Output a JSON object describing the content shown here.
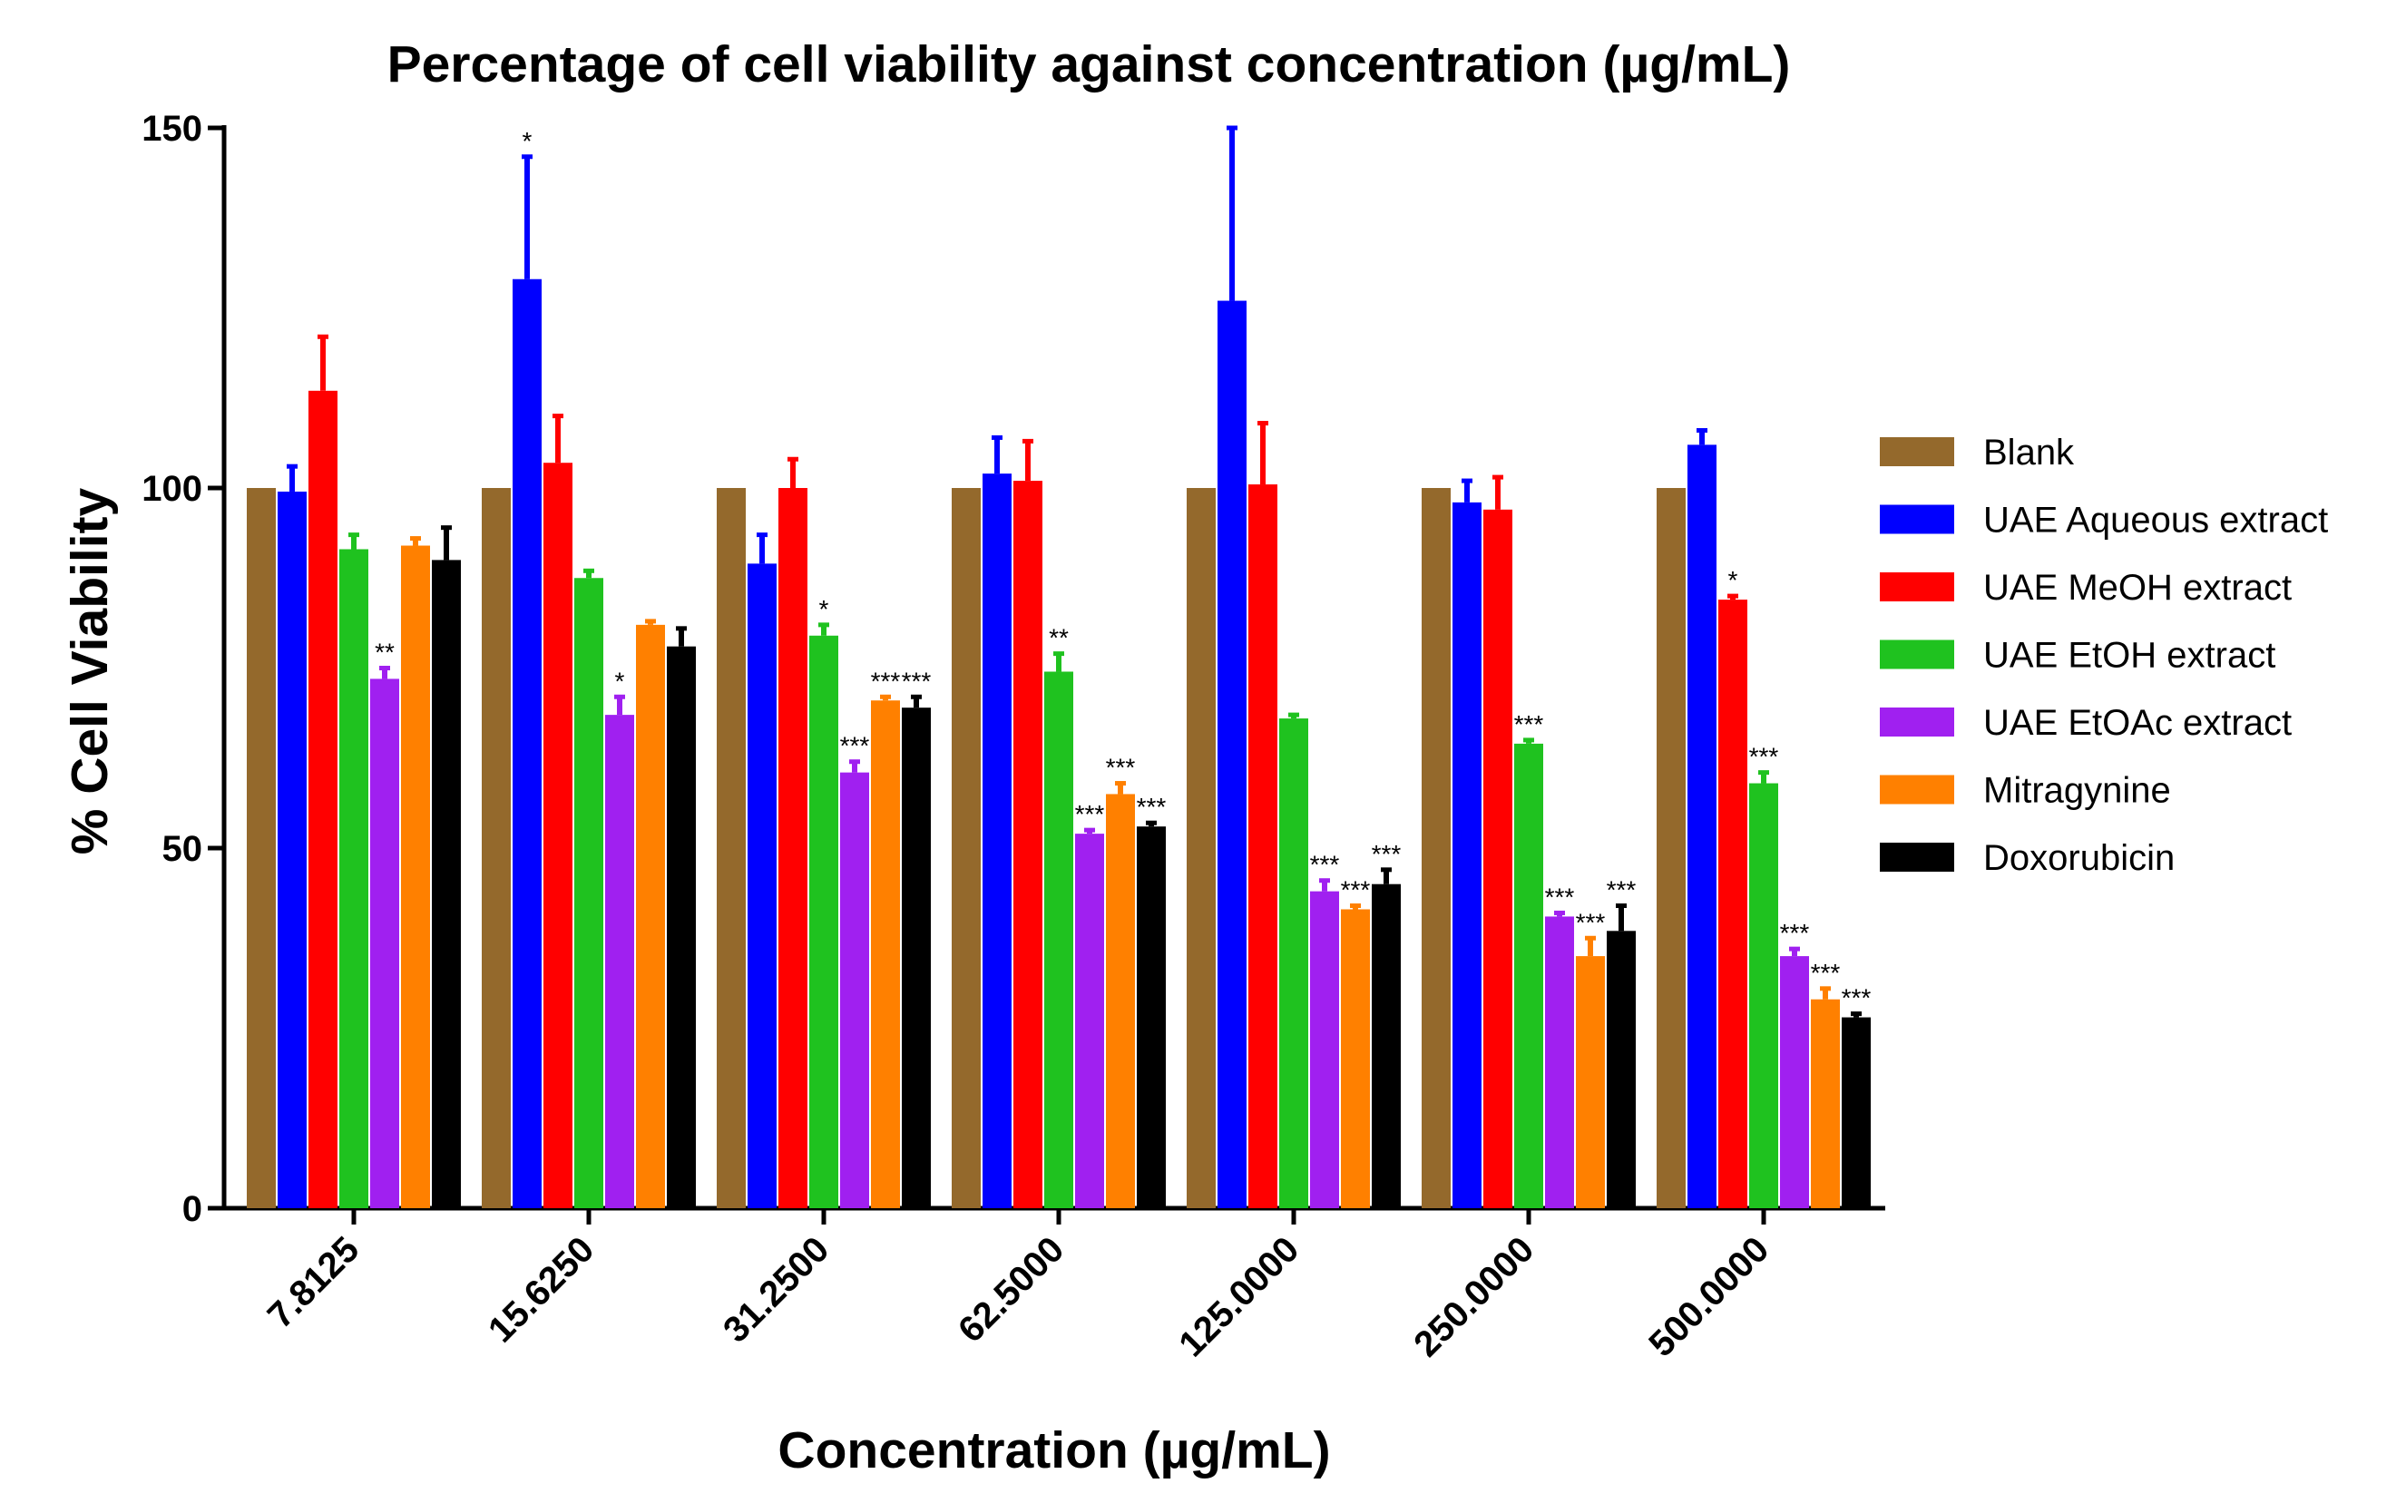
{
  "chart_data": {
    "type": "bar",
    "title": "Percentage of cell viability against concentration (µg/mL)",
    "xlabel": "Concentration (µg/mL)",
    "ylabel": "% Cell Viability",
    "ylim": [
      0,
      150
    ],
    "yticks": [
      "0",
      "50",
      "100",
      "150"
    ],
    "categories": [
      "7.8125",
      "15.6250",
      "31.2500",
      "62.5000",
      "125.0000",
      "250.0000",
      "500.0000"
    ],
    "legend_position": "right",
    "grid": false,
    "series": [
      {
        "name": "Blank",
        "color": "#94692c",
        "values": [
          100,
          100,
          100,
          100,
          100,
          100,
          100
        ],
        "errors": [
          0,
          0,
          0,
          0,
          0,
          0,
          0
        ],
        "sig": [
          "",
          "",
          "",
          "",
          "",
          "",
          ""
        ]
      },
      {
        "name": "UAE Aqueous extract",
        "color": "#0000ff",
        "values": [
          99.5,
          129,
          89.5,
          102,
          126,
          98,
          106
        ],
        "errors": [
          3.5,
          17,
          4,
          5,
          24,
          3,
          2
        ],
        "sig": [
          "",
          "*",
          "",
          "",
          "",
          "",
          ""
        ]
      },
      {
        "name": "UAE MeOH extract",
        "color": "#ff0000",
        "values": [
          113.5,
          103.5,
          100,
          101,
          100.5,
          97,
          84.5
        ],
        "errors": [
          7.5,
          6.5,
          4,
          5.5,
          8.5,
          4.5,
          0.5
        ],
        "sig": [
          "",
          "",
          "",
          "",
          "",
          "",
          "*"
        ]
      },
      {
        "name": "UAE EtOH extract",
        "color": "#1fc21f",
        "values": [
          91.5,
          87.5,
          79.5,
          74.5,
          68,
          64.5,
          59
        ],
        "errors": [
          2,
          1,
          1.5,
          2.5,
          0.5,
          0.5,
          1.5
        ],
        "sig": [
          "",
          "",
          "*",
          "**",
          "",
          "***",
          "***"
        ]
      },
      {
        "name": "UAE EtOAc extract",
        "color": "#a020f0",
        "values": [
          73.5,
          68.5,
          60.5,
          52,
          44,
          40.5,
          35
        ],
        "errors": [
          1.5,
          2.5,
          1.5,
          0.5,
          1.5,
          0.5,
          1
        ],
        "sig": [
          "**",
          "*",
          "***",
          "***",
          "***",
          "***",
          "***"
        ]
      },
      {
        "name": "Mitragynine",
        "color": "#ff8000",
        "values": [
          92,
          81,
          70.5,
          57.5,
          41.5,
          35,
          29
        ],
        "errors": [
          1,
          0.5,
          0.5,
          1.5,
          0.5,
          2.5,
          1.5
        ],
        "sig": [
          "",
          "",
          "***",
          "***",
          "***",
          "***",
          "***"
        ]
      },
      {
        "name": "Doxorubicin",
        "color": "#000000",
        "values": [
          90,
          78,
          69.5,
          53,
          45,
          38.5,
          26.5
        ],
        "errors": [
          4.5,
          2.5,
          1.5,
          0.5,
          2,
          3.5,
          0.5
        ],
        "sig": [
          "",
          "",
          "***",
          "***",
          "***",
          "***",
          "***"
        ]
      }
    ]
  }
}
